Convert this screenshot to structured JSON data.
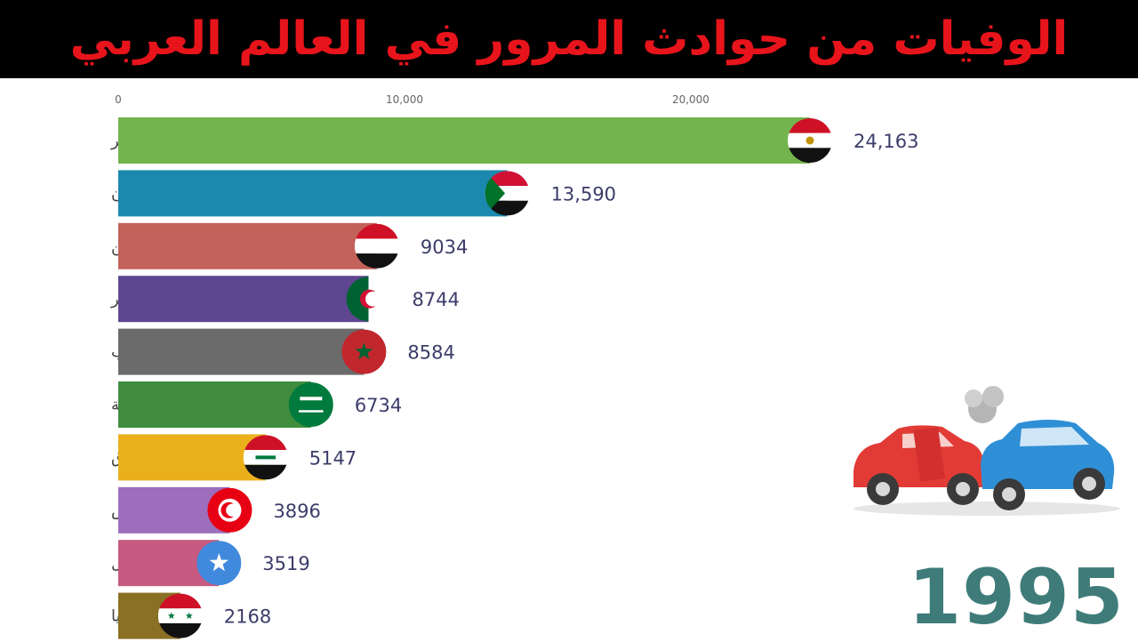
{
  "title": "الوفيات من حوادث المرور في العالم العربي",
  "year": "1995",
  "chart_data": {
    "type": "bar",
    "orientation": "horizontal",
    "title": "الوفيات من حوادث المرور في العالم العربي",
    "categories": [
      "مصر",
      "السودان",
      "اليمن",
      "الجزائر",
      "المغرب",
      "السعودية",
      "العراق",
      "تونس",
      "الصومال",
      "سوريا"
    ],
    "values": [
      24163,
      13590,
      9034,
      8744,
      8584,
      6734,
      5147,
      3896,
      3519,
      2168
    ],
    "value_labels": [
      "24,163",
      "13,590",
      "9034",
      "8744",
      "8584",
      "6734",
      "5147",
      "3896",
      "3519",
      "2168"
    ],
    "colors": [
      "#74b44e",
      "#1b89ad",
      "#c2625a",
      "#5e4690",
      "#6b6b6b",
      "#3f8c3d",
      "#eab01b",
      "#9c6ebb",
      "#c65a80",
      "#8a7024"
    ],
    "flags": [
      "egypt-flag",
      "sudan-flag",
      "yemen-flag",
      "algeria-flag",
      "morocco-flag",
      "saudi-flag",
      "iraq-flag",
      "tunisia-flag",
      "somalia-flag",
      "syria-flag"
    ],
    "x_ticks": [
      0,
      10000,
      20000
    ],
    "x_tick_labels": [
      "0",
      "10,000",
      "20,000"
    ],
    "xlim": [
      0,
      24163
    ],
    "grid": false,
    "legend": "none"
  }
}
